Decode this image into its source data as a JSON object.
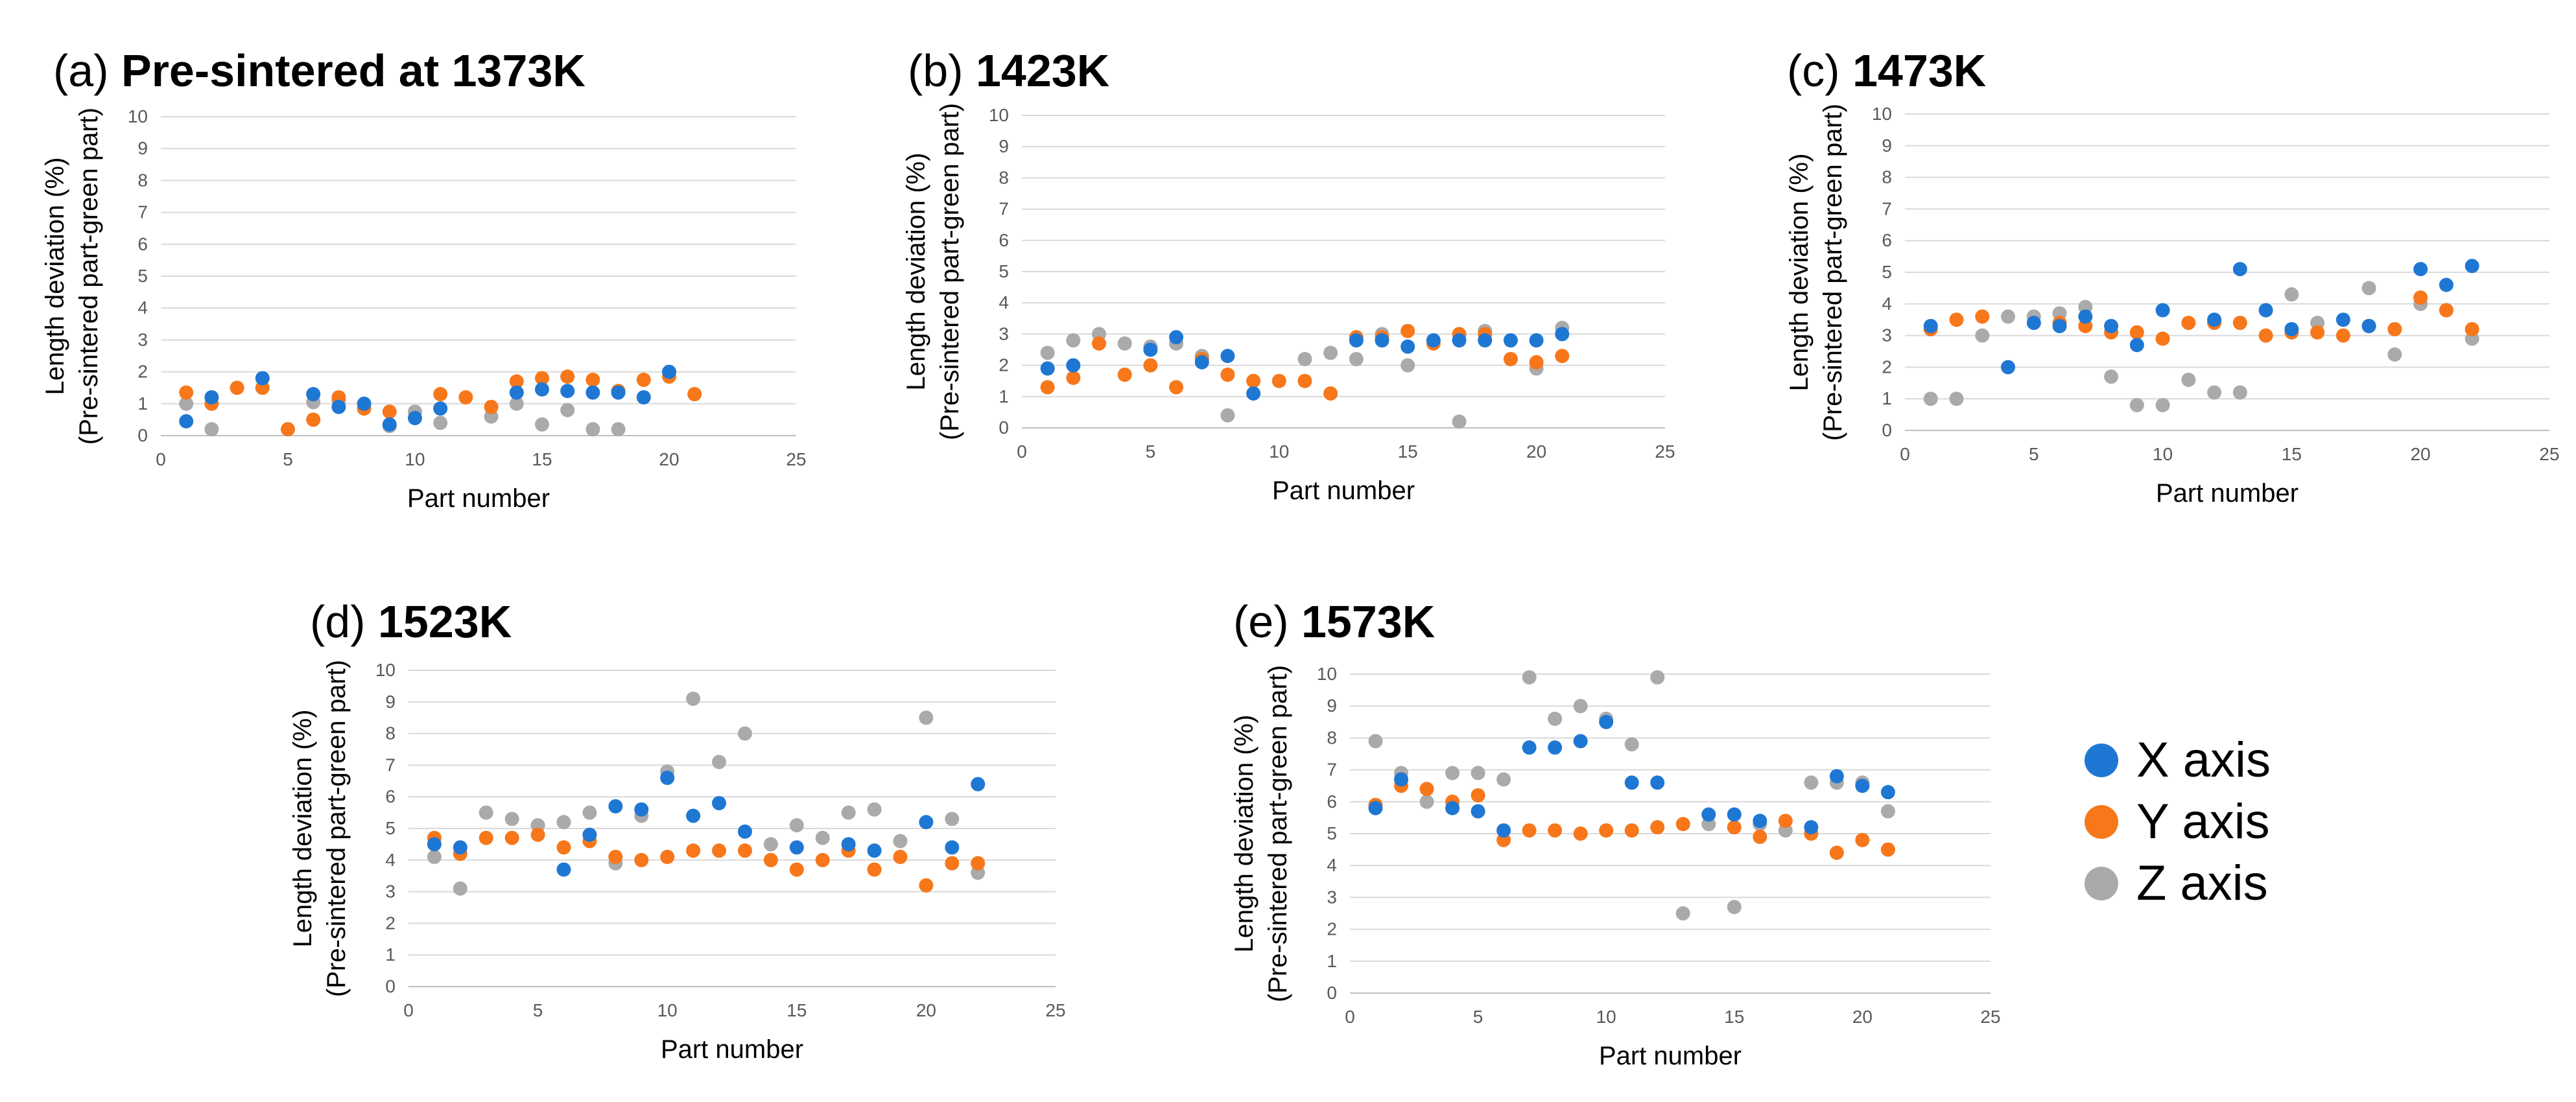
{
  "legend": [
    {
      "label": "X axis",
      "color": "#1f77d4"
    },
    {
      "label": "Y axis",
      "color": "#f7771a"
    },
    {
      "label": "Z axis",
      "color": "#aaaaaa"
    }
  ],
  "chart_data": [
    {
      "type": "scatter",
      "panel_label": "(a)",
      "title": "Pre-sintered at 1373K",
      "xlabel": "Part number",
      "ylabel": "Length deviation (%)",
      "ylabel2": "(Pre-sintered part-green part)",
      "xlim": [
        0,
        25
      ],
      "ylim": [
        0,
        10
      ],
      "xticks": [
        0,
        5,
        10,
        15,
        20,
        25
      ],
      "yticks": [
        0,
        1,
        2,
        3,
        4,
        5,
        6,
        7,
        8,
        9,
        10
      ],
      "grid": true,
      "series": [
        {
          "name": "X axis",
          "x": [
            1,
            2,
            4,
            6,
            7,
            8,
            9,
            10,
            11,
            14,
            15,
            16,
            17,
            18,
            19,
            20
          ],
          "y": [
            0.45,
            1.2,
            1.8,
            1.3,
            0.9,
            1.0,
            0.35,
            0.55,
            0.85,
            1.35,
            1.45,
            1.4,
            1.35,
            1.35,
            1.2,
            2.0
          ]
        },
        {
          "name": "Y axis",
          "x": [
            1,
            2,
            3,
            4,
            5,
            6,
            7,
            8,
            9,
            11,
            12,
            13,
            14,
            15,
            16,
            17,
            18,
            19,
            20,
            21
          ],
          "y": [
            1.35,
            1.0,
            1.5,
            1.5,
            0.2,
            0.5,
            1.2,
            0.85,
            0.75,
            1.3,
            1.2,
            0.9,
            1.7,
            1.8,
            1.85,
            1.75,
            1.4,
            1.75,
            1.85,
            1.3
          ]
        },
        {
          "name": "Z axis",
          "x": [
            1,
            2,
            6,
            7,
            9,
            10,
            11,
            13,
            14,
            15,
            16,
            17,
            18
          ],
          "y": [
            1.0,
            0.2,
            1.05,
            1.1,
            0.3,
            0.75,
            0.4,
            0.6,
            1.0,
            0.35,
            0.8,
            0.2,
            0.2
          ]
        }
      ]
    },
    {
      "type": "scatter",
      "panel_label": "(b)",
      "title": "1423K",
      "xlabel": "Part number",
      "ylabel": "Length deviation (%)",
      "ylabel2": "(Pre-sintered part-green part)",
      "xlim": [
        0,
        25
      ],
      "ylim": [
        0,
        10
      ],
      "xticks": [
        0,
        5,
        10,
        15,
        20,
        25
      ],
      "yticks": [
        0,
        1,
        2,
        3,
        4,
        5,
        6,
        7,
        8,
        9,
        10
      ],
      "grid": true,
      "series": [
        {
          "name": "X axis",
          "x": [
            1,
            2,
            5,
            6,
            7,
            8,
            9,
            13,
            14,
            15,
            16,
            17,
            18,
            19,
            20,
            21
          ],
          "y": [
            1.9,
            2.0,
            2.5,
            2.9,
            2.1,
            2.3,
            1.1,
            2.8,
            2.8,
            2.6,
            2.8,
            2.8,
            2.8,
            2.8,
            2.8,
            3.0
          ]
        },
        {
          "name": "Y axis",
          "x": [
            1,
            2,
            3,
            4,
            5,
            6,
            7,
            8,
            9,
            10,
            11,
            12,
            13,
            14,
            15,
            16,
            17,
            18,
            19,
            20,
            21
          ],
          "y": [
            1.3,
            1.6,
            2.7,
            1.7,
            2.0,
            1.3,
            2.2,
            1.7,
            1.5,
            1.5,
            1.5,
            1.1,
            2.9,
            2.9,
            3.1,
            2.7,
            3.0,
            3.0,
            2.2,
            2.1,
            2.3
          ]
        },
        {
          "name": "Z axis",
          "x": [
            1,
            2,
            3,
            4,
            5,
            6,
            7,
            8,
            11,
            12,
            13,
            14,
            15,
            17,
            18,
            20,
            21
          ],
          "y": [
            2.4,
            2.8,
            3.0,
            2.7,
            2.6,
            2.7,
            2.3,
            0.4,
            2.2,
            2.4,
            2.2,
            3.0,
            2.0,
            0.2,
            3.1,
            1.9,
            3.2
          ]
        }
      ]
    },
    {
      "type": "scatter",
      "panel_label": "(c)",
      "title": "1473K",
      "xlabel": "Part number",
      "ylabel": "Length deviation (%)",
      "ylabel2": "(Pre-sintered part-green part)",
      "xlim": [
        0,
        25
      ],
      "ylim": [
        0,
        10
      ],
      "xticks": [
        0,
        5,
        10,
        15,
        20,
        25
      ],
      "yticks": [
        0,
        1,
        2,
        3,
        4,
        5,
        6,
        7,
        8,
        9,
        10
      ],
      "grid": true,
      "series": [
        {
          "name": "X axis",
          "x": [
            1,
            4,
            5,
            6,
            7,
            8,
            9,
            10,
            12,
            13,
            14,
            15,
            17,
            18,
            20,
            21,
            22
          ],
          "y": [
            3.3,
            2.0,
            3.4,
            3.3,
            3.6,
            3.3,
            2.7,
            3.8,
            3.5,
            5.1,
            3.8,
            3.2,
            3.5,
            3.3,
            5.1,
            4.6,
            5.2
          ]
        },
        {
          "name": "Y axis",
          "x": [
            1,
            2,
            3,
            6,
            7,
            8,
            9,
            10,
            11,
            12,
            13,
            14,
            15,
            16,
            17,
            18,
            19,
            20,
            21,
            22
          ],
          "y": [
            3.2,
            3.5,
            3.6,
            3.4,
            3.3,
            3.1,
            3.1,
            2.9,
            3.4,
            3.4,
            3.4,
            3.0,
            3.1,
            3.1,
            3.0,
            3.3,
            3.2,
            4.2,
            3.8,
            3.2
          ]
        },
        {
          "name": "Z axis",
          "x": [
            1,
            2,
            3,
            4,
            5,
            6,
            7,
            8,
            9,
            10,
            11,
            12,
            13,
            15,
            16,
            18,
            19,
            20,
            21,
            22
          ],
          "y": [
            1.0,
            1.0,
            3.0,
            3.6,
            3.6,
            3.7,
            3.9,
            1.7,
            0.8,
            0.8,
            1.6,
            1.2,
            1.2,
            4.3,
            3.4,
            4.5,
            2.4,
            4.0,
            3.8,
            2.9
          ]
        }
      ]
    },
    {
      "type": "scatter",
      "panel_label": "(d)",
      "title": "1523K",
      "xlabel": "Part number",
      "ylabel": "Length deviation (%)",
      "ylabel2": "(Pre-sintered part-green part)",
      "xlim": [
        0,
        25
      ],
      "ylim": [
        0,
        10
      ],
      "xticks": [
        0,
        5,
        10,
        15,
        20,
        25
      ],
      "yticks": [
        0,
        1,
        2,
        3,
        4,
        5,
        6,
        7,
        8,
        9,
        10
      ],
      "grid": true,
      "series": [
        {
          "name": "X axis",
          "x": [
            1,
            2,
            6,
            7,
            8,
            9,
            10,
            11,
            12,
            13,
            15,
            17,
            18,
            20,
            21,
            22
          ],
          "y": [
            4.5,
            4.4,
            3.7,
            4.8,
            5.7,
            5.6,
            6.6,
            5.4,
            5.8,
            4.9,
            4.4,
            4.5,
            4.3,
            5.2,
            4.4,
            6.4
          ]
        },
        {
          "name": "Y axis",
          "x": [
            1,
            2,
            3,
            4,
            5,
            6,
            7,
            8,
            9,
            10,
            11,
            12,
            13,
            14,
            15,
            16,
            17,
            18,
            19,
            20,
            21,
            22
          ],
          "y": [
            4.7,
            4.2,
            4.7,
            4.7,
            4.8,
            4.4,
            4.6,
            4.1,
            4.0,
            4.1,
            4.3,
            4.3,
            4.3,
            4.0,
            3.7,
            4.0,
            4.3,
            3.7,
            4.1,
            3.2,
            3.9,
            3.9
          ]
        },
        {
          "name": "Z axis",
          "x": [
            1,
            2,
            3,
            4,
            5,
            6,
            7,
            8,
            9,
            10,
            11,
            12,
            13,
            14,
            15,
            16,
            17,
            18,
            19,
            20,
            21,
            22
          ],
          "y": [
            4.1,
            3.1,
            5.5,
            5.3,
            5.1,
            5.2,
            5.5,
            3.9,
            5.4,
            6.8,
            9.1,
            7.1,
            8.0,
            4.5,
            5.1,
            4.7,
            5.5,
            5.6,
            4.6,
            8.5,
            5.3,
            3.6
          ]
        }
      ]
    },
    {
      "type": "scatter",
      "panel_label": "(e)",
      "title": "1573K",
      "xlabel": "Part number",
      "ylabel": "Length deviation (%)",
      "ylabel2": "(Pre-sintered part-green part)",
      "xlim": [
        0,
        25
      ],
      "ylim": [
        0,
        10
      ],
      "xticks": [
        0,
        5,
        10,
        15,
        20,
        25
      ],
      "yticks": [
        0,
        1,
        2,
        3,
        4,
        5,
        6,
        7,
        8,
        9,
        10
      ],
      "grid": true,
      "series": [
        {
          "name": "X axis",
          "x": [
            1,
            2,
            4,
            5,
            6,
            7,
            8,
            9,
            10,
            11,
            12,
            14,
            15,
            16,
            18,
            19,
            20,
            21
          ],
          "y": [
            5.8,
            6.7,
            5.8,
            5.7,
            5.1,
            7.7,
            7.7,
            7.9,
            8.5,
            6.6,
            6.6,
            5.6,
            5.6,
            5.4,
            5.2,
            6.8,
            6.5,
            6.3
          ]
        },
        {
          "name": "Y axis",
          "x": [
            1,
            2,
            3,
            4,
            5,
            6,
            7,
            8,
            9,
            10,
            11,
            12,
            13,
            15,
            16,
            17,
            18,
            19,
            20,
            21
          ],
          "y": [
            5.9,
            6.5,
            6.4,
            6.0,
            6.2,
            4.8,
            5.1,
            5.1,
            5.0,
            5.1,
            5.1,
            5.2,
            5.3,
            5.2,
            4.9,
            5.4,
            5.0,
            4.4,
            4.8,
            4.5
          ]
        },
        {
          "name": "Z axis",
          "x": [
            1,
            2,
            3,
            4,
            5,
            6,
            7,
            8,
            9,
            10,
            11,
            12,
            13,
            14,
            15,
            16,
            17,
            18,
            19,
            20,
            21
          ],
          "y": [
            7.9,
            6.9,
            6.0,
            6.9,
            6.9,
            6.7,
            9.9,
            8.6,
            9.0,
            8.6,
            7.8,
            9.9,
            2.5,
            5.3,
            2.7,
            5.3,
            5.1,
            6.6,
            6.6,
            6.6,
            5.7
          ]
        }
      ]
    }
  ]
}
